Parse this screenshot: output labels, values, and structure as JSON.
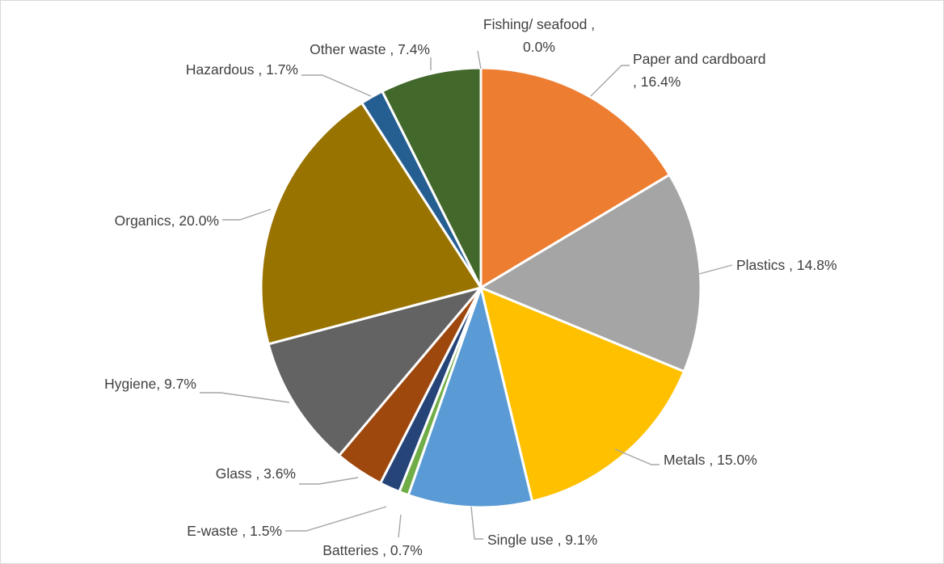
{
  "chart_data": {
    "type": "pie",
    "title": "",
    "start_angle_deg": 0,
    "direction": "clockwise",
    "slices": [
      {
        "name": "Fishing/ seafood",
        "value": 0.0,
        "display": "0.0%",
        "label_lines": [
          "Fishing/ seafood ,",
          "0.0%"
        ],
        "color": "#5b9bd5"
      },
      {
        "name": "Paper and cardboard",
        "value": 16.4,
        "display": "16.4%",
        "label_lines": [
          "Paper and cardboard",
          ", 16.4%"
        ],
        "color": "#ed7d31"
      },
      {
        "name": "Plastics",
        "value": 14.8,
        "display": "14.8%",
        "label_lines": [
          "Plastics , 14.8%"
        ],
        "color": "#a5a5a5"
      },
      {
        "name": "Metals",
        "value": 15.0,
        "display": "15.0%",
        "label_lines": [
          "Metals , 15.0%"
        ],
        "color": "#ffc000"
      },
      {
        "name": "Single use",
        "value": 9.1,
        "display": "9.1%",
        "label_lines": [
          "Single use , 9.1%"
        ],
        "color": "#5b9bd5"
      },
      {
        "name": "Batteries",
        "value": 0.7,
        "display": "0.7%",
        "label_lines": [
          "Batteries , 0.7%"
        ],
        "color": "#70ad47"
      },
      {
        "name": "E-waste",
        "value": 1.5,
        "display": "1.5%",
        "label_lines": [
          "E-waste , 1.5%"
        ],
        "color": "#264478"
      },
      {
        "name": "Glass",
        "value": 3.6,
        "display": "3.6%",
        "label_lines": [
          "Glass , 3.6%"
        ],
        "color": "#9e480e"
      },
      {
        "name": "Hygiene",
        "value": 9.7,
        "display": "9.7%",
        "label_lines": [
          "Hygiene, 9.7%"
        ],
        "color": "#636363"
      },
      {
        "name": "Organics",
        "value": 20.0,
        "display": "20.0%",
        "label_lines": [
          "Organics, 20.0%"
        ],
        "color": "#997300"
      },
      {
        "name": "Hazardous",
        "value": 1.7,
        "display": "1.7%",
        "label_lines": [
          "Hazardous , 1.7%"
        ],
        "color": "#255e91"
      },
      {
        "name": "Other waste",
        "value": 7.4,
        "display": "7.4%",
        "label_lines": [
          "Other waste , 7.4%"
        ],
        "color": "#43682b"
      }
    ]
  }
}
